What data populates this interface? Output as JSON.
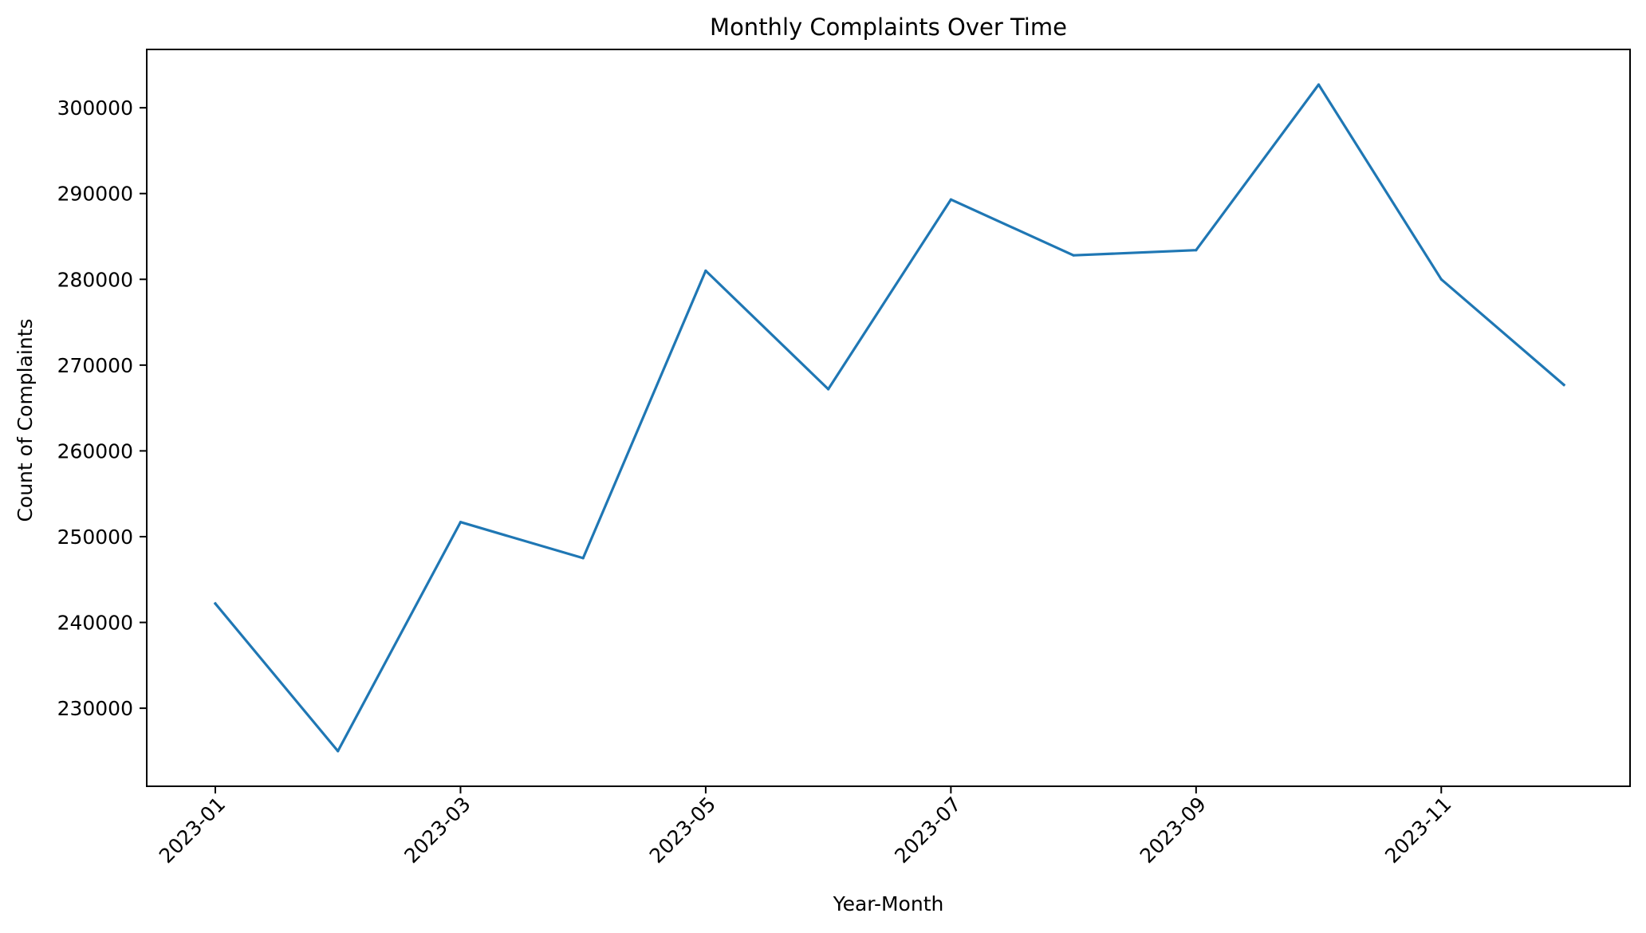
{
  "chart_data": {
    "type": "line",
    "title": "Monthly Complaints Over Time",
    "xlabel": "Year-Month",
    "ylabel": "Count of Complaints",
    "x": [
      "2023-01",
      "2023-02",
      "2023-03",
      "2023-04",
      "2023-05",
      "2023-06",
      "2023-07",
      "2023-08",
      "2023-09",
      "2023-10",
      "2023-11",
      "2023-12"
    ],
    "series": [
      {
        "values": [
          242200,
          225000,
          251700,
          247500,
          281000,
          267200,
          289300,
          282800,
          283400,
          302700,
          280000,
          267700
        ],
        "color": "#1f77b4"
      }
    ],
    "x_ticks": [
      "2023-01",
      "2023-03",
      "2023-05",
      "2023-07",
      "2023-09",
      "2023-11"
    ],
    "y_ticks": [
      230000,
      240000,
      250000,
      260000,
      270000,
      280000,
      290000,
      300000
    ],
    "y_tick_labels": [
      "230000",
      "240000",
      "250000",
      "260000",
      "270000",
      "280000",
      "290000",
      "300000"
    ],
    "ylim": [
      220900,
      306800
    ],
    "grid": false,
    "legend": false
  }
}
